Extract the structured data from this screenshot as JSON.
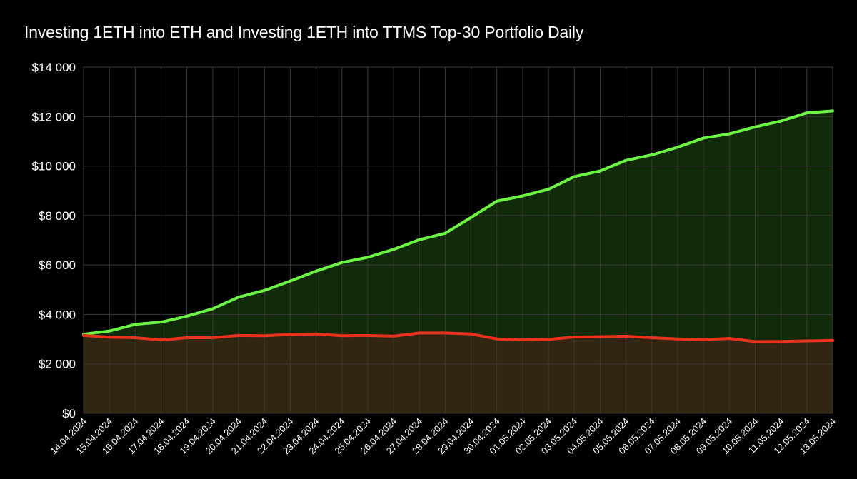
{
  "chart_data": {
    "type": "area",
    "title": "Investing 1ETH into ETH and Investing 1ETH into TTMS Top-30 Portfolio Daily",
    "xlabel": "",
    "ylabel": "",
    "ylim": [
      0,
      14000
    ],
    "yticks": [
      0,
      2000,
      4000,
      6000,
      8000,
      10000,
      12000,
      14000
    ],
    "ytick_labels": [
      "$0",
      "$2 000",
      "$4 000",
      "$6 000",
      "$8 000",
      "$10 000",
      "$12 000",
      "$14 000"
    ],
    "grid": true,
    "categories": [
      "14.04.2024",
      "15.04.2024",
      "16.04.2024",
      "17.04.2024",
      "18.04.2024",
      "19.04.2024",
      "20.04.2024",
      "21.04.2024",
      "22.04.2024",
      "23.04.2024",
      "24.04.2024",
      "25.04.2024",
      "26.04.2024",
      "27.04.2024",
      "28.04.2024",
      "29.04.2024",
      "30.04.2024",
      "01.05.2024",
      "02.05.2024",
      "03.05.2024",
      "04.05.2024",
      "05.05.2024",
      "06.05.2024",
      "07.05.2024",
      "08.05.2024",
      "09.05.2024",
      "10.05.2024",
      "11.05.2024",
      "12.05.2024",
      "13.05.2024"
    ],
    "series": [
      {
        "name": "TTMS Top-30 Portfolio",
        "line_color": "#6cf545",
        "fill_color": "#112a0a",
        "values": [
          3200,
          3330,
          3600,
          3690,
          3930,
          4230,
          4700,
          4970,
          5350,
          5750,
          6100,
          6310,
          6630,
          7020,
          7280,
          7920,
          8580,
          8790,
          9060,
          9570,
          9800,
          10230,
          10450,
          10760,
          11130,
          11300,
          11580,
          11820,
          12150,
          12230
        ]
      },
      {
        "name": "ETH",
        "line_color": "#e8321e",
        "fill_color": "#322612",
        "values": [
          3150,
          3080,
          3060,
          2970,
          3060,
          3060,
          3150,
          3140,
          3190,
          3210,
          3140,
          3150,
          3120,
          3250,
          3250,
          3210,
          3010,
          2970,
          2990,
          3090,
          3100,
          3120,
          3060,
          3010,
          2980,
          3030,
          2900,
          2910,
          2930,
          2950
        ]
      }
    ]
  }
}
